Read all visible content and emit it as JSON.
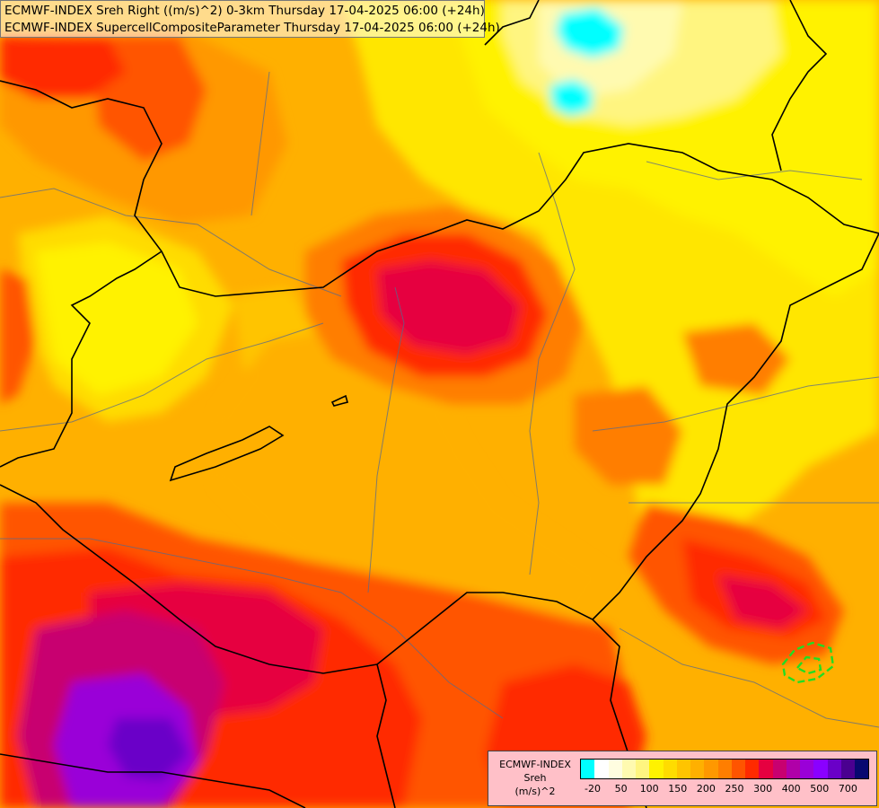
{
  "title": {
    "line1": "ECMWF-INDEX Sreh Right ((m/s)^2) 0-3km Thursday 17-04-2025 06:00 (+24h)",
    "line2": "ECMWF-INDEX SupercellCompositeParameter Thursday 17-04-2025 06:00 (+24h)"
  },
  "legend": {
    "line1": "ECMWF-INDEX",
    "line2": "Sreh",
    "line3": "(m/s)^2",
    "colors": [
      "#00ffff",
      "#ffffff",
      "#fffde0",
      "#fffab0",
      "#fff580",
      "#fff200",
      "#ffdc00",
      "#ffc400",
      "#ffb000",
      "#ff9800",
      "#ff7e00",
      "#ff5400",
      "#ff2a00",
      "#e60040",
      "#c80070",
      "#b000a8",
      "#9a00d8",
      "#8a00ff",
      "#6a00c8",
      "#4a0090",
      "#080870"
    ],
    "ticks": [
      "-20",
      "50",
      "100",
      "150",
      "200",
      "250",
      "300",
      "400",
      "500",
      "700"
    ]
  },
  "map": {
    "scp_contour_color": "#22dd22",
    "border_color": "#000000",
    "river_color": "#5a6a8a"
  }
}
